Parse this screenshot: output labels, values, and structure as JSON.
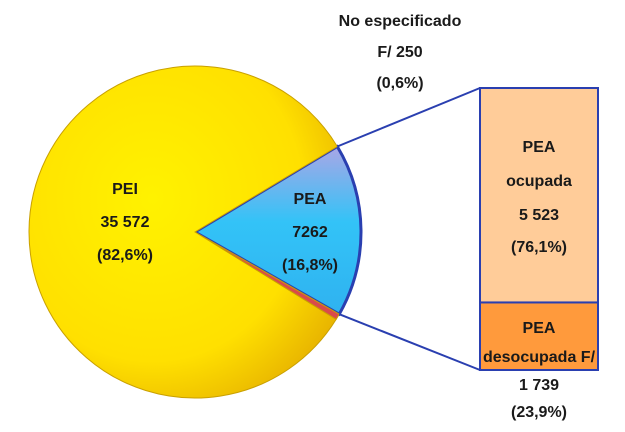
{
  "chart_data": [
    {
      "type": "pie",
      "categories": [
        "PEA",
        "No especificado",
        "PEI"
      ],
      "values": [
        7262,
        250,
        35572
      ],
      "value_labels": [
        "7262",
        "F/ 250",
        "35 572"
      ],
      "percents": [
        16.8,
        0.6,
        82.6
      ],
      "percent_labels": [
        "(16,8%)",
        "(0,6%)",
        "(82,6%)"
      ],
      "colors": [
        "#3ec3f5",
        "#d94a4a",
        "#ffe800"
      ]
    },
    {
      "type": "bar",
      "categories": [
        "PEA ocupada",
        "PEA desocupada F/"
      ],
      "values": [
        5523,
        1739
      ],
      "value_labels": [
        "5 523",
        "1 739"
      ],
      "percents": [
        76.1,
        23.9
      ],
      "percent_labels": [
        "(76,1%)",
        "(23,9%)"
      ],
      "colors": [
        "#ffcc99",
        "#ff9a3c"
      ]
    }
  ]
}
